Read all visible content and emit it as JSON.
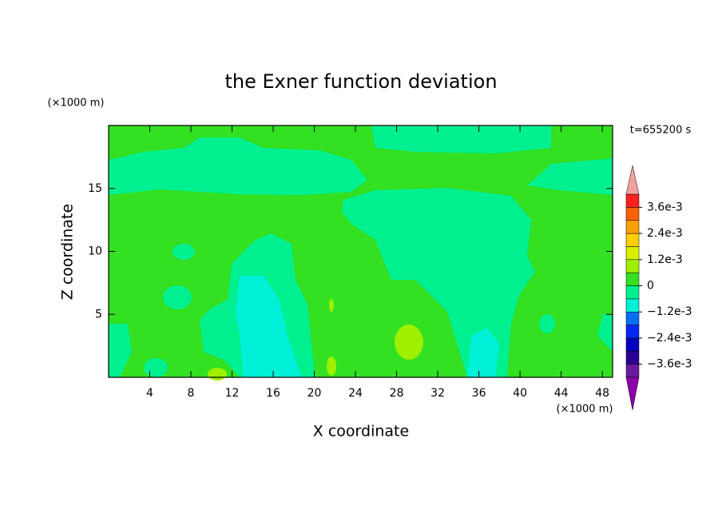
{
  "chart_data": {
    "type": "contour",
    "title": "the Exner function deviation",
    "x_label": "X coordinate",
    "y_label": "Z coordinate",
    "x_unit": "(×1000 m)",
    "y_unit": "(×1000 m)",
    "annotation": "t=655200 s",
    "xlim": [
      0,
      49
    ],
    "ylim": [
      0,
      20
    ],
    "xticks": [
      4,
      8,
      12,
      16,
      20,
      24,
      28,
      32,
      36,
      40,
      44,
      48
    ],
    "yticks": [
      5,
      10,
      15
    ],
    "levels": [
      -0.0042,
      -0.0036,
      -0.003,
      -0.0024,
      -0.0018,
      -0.0012,
      -0.0006,
      0,
      0.0006,
      0.0012,
      0.0018,
      0.0024,
      0.003,
      0.0036,
      0.0042
    ],
    "colors": [
      "#6a1aa0",
      "#2a0090",
      "#0000c0",
      "#0028f0",
      "#0070f8",
      "#00f0d8",
      "#00f090",
      "#33e022",
      "#9ef000",
      "#d8f000",
      "#ffd000",
      "#ffa000",
      "#ff6000",
      "#ff2020"
    ],
    "under_color": "#8b00a8",
    "over_color": "#f4a0a0",
    "colorbar_ticks": [
      {
        "value": 0.0036,
        "label": "3.6e-3"
      },
      {
        "value": 0.0024,
        "label": "2.4e-3"
      },
      {
        "value": 0.0012,
        "label": "1.2e-3"
      },
      0,
      {
        "value": -0.0012,
        "label": "−1.2e-3"
      },
      {
        "value": -0.0024,
        "label": "−2.4e-3"
      },
      {
        "value": -0.0036,
        "label": "−3.6e-3"
      }
    ]
  }
}
